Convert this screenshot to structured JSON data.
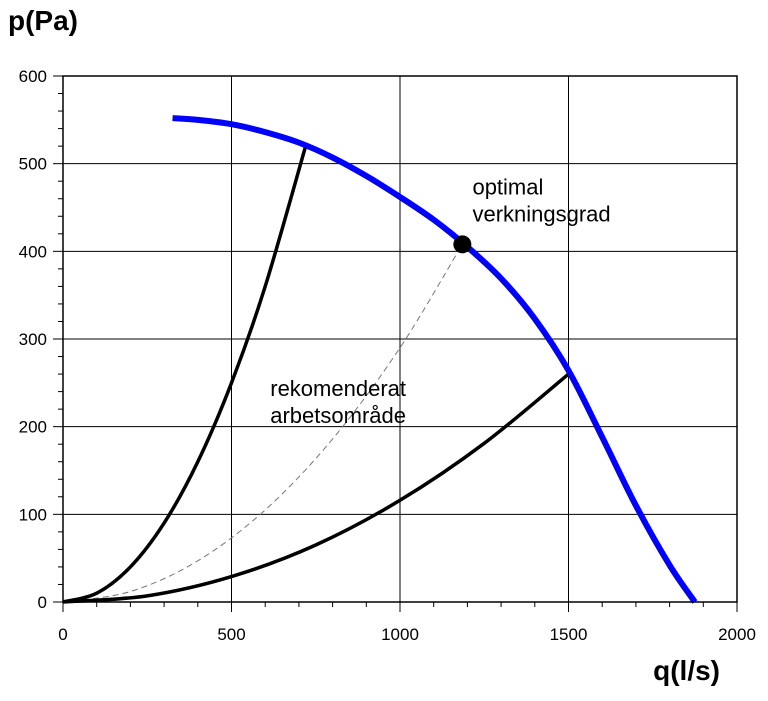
{
  "chart_data": {
    "type": "line",
    "xlabel": "q(l/s)",
    "ylabel": "p(Pa)",
    "xlim": [
      0,
      2000
    ],
    "ylim": [
      0,
      600
    ],
    "x_ticks": [
      "0",
      "500",
      "1000",
      "1500",
      "2000"
    ],
    "y_ticks": [
      "0",
      "100",
      "200",
      "300",
      "400",
      "500",
      "600"
    ],
    "grid": true,
    "series": [
      {
        "role": "fan-curve",
        "color": "#0000ff",
        "x": [
          325,
          400,
          500,
          600,
          700,
          800,
          900,
          1000,
          1100,
          1200,
          1300,
          1400,
          1500,
          1600,
          1700,
          1800,
          1875
        ],
        "y": [
          552,
          550,
          545,
          536,
          524,
          507,
          486,
          462,
          436,
          405,
          369,
          323,
          264,
          188,
          110,
          42,
          0
        ]
      },
      {
        "role": "system-curve-upper",
        "color": "#000000",
        "x": [
          0,
          100,
          200,
          300,
          400,
          500,
          600,
          720
        ],
        "y": [
          0,
          10,
          40,
          90,
          160,
          250,
          360,
          520
        ]
      },
      {
        "role": "system-curve-optimal",
        "color": "#777777",
        "dashed": true,
        "x": [
          0,
          200,
          400,
          600,
          800,
          1000,
          1185
        ],
        "y": [
          0,
          12,
          47,
          105,
          186,
          290,
          408
        ]
      },
      {
        "role": "system-curve-lower",
        "color": "#000000",
        "x": [
          0,
          250,
          500,
          750,
          1000,
          1250,
          1500
        ],
        "y": [
          0,
          7,
          29,
          65,
          116,
          181,
          260
        ]
      }
    ],
    "points": [
      {
        "label": "optimal verkningsgrad",
        "x": 1185,
        "y": 408
      }
    ],
    "annotations": [
      {
        "lines": [
          "optimal",
          "verkningsgrad"
        ],
        "x": 1215,
        "y": 465
      },
      {
        "lines": [
          "rekomenderat",
          "arbetsområde"
        ],
        "x": 615,
        "y": 235
      }
    ]
  }
}
